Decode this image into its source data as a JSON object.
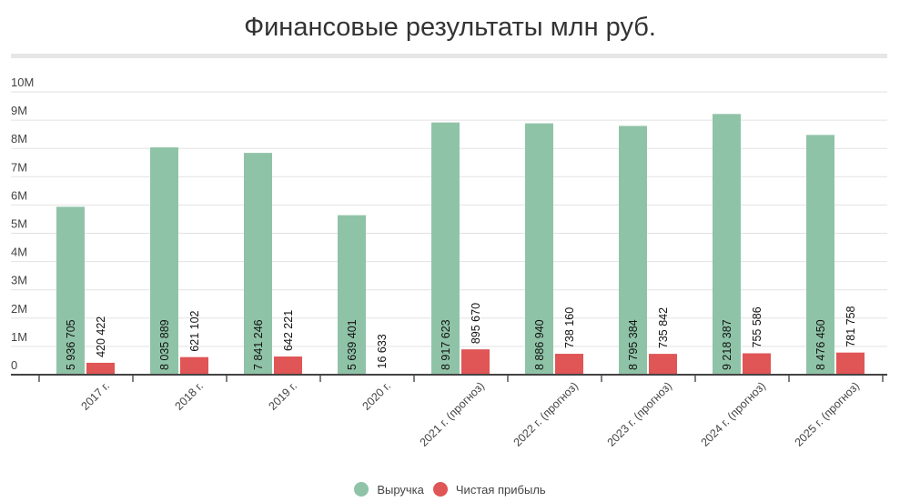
{
  "chart_data": {
    "type": "bar",
    "title": "Финансовые результаты млн руб.",
    "categories": [
      "2017 г.",
      "2018 г.",
      "2019 г.",
      "2020 г.",
      "2021 г. (прогноз)",
      "2022 г. (прогноз)",
      "2023 г. (прогноз)",
      "2024 г. (прогноз)",
      "2025 г. (прогноз)"
    ],
    "series": [
      {
        "name": "Выручка",
        "color": "#8fc3a7",
        "values": [
          5936705,
          8035889,
          7841246,
          5639401,
          8917623,
          8886940,
          8795384,
          9218387,
          8476450
        ],
        "labels": [
          "5 936 705",
          "8 035 889",
          "7 841 246",
          "5 639 401",
          "8 917 623",
          "8 886 940",
          "8 795 384",
          "9 218 387",
          "8 476 450"
        ]
      },
      {
        "name": "Чистая прибыль",
        "color": "#e05555",
        "values": [
          420422,
          621102,
          642221,
          16633,
          895670,
          738160,
          735842,
          755586,
          781758
        ],
        "labels": [
          "420 422",
          "621 102",
          "642 221",
          "16 633",
          "895 670",
          "738 160",
          "735 842",
          "755 586",
          "781 758"
        ]
      }
    ],
    "yticks": [
      "0",
      "1M",
      "2M",
      "3M",
      "4M",
      "5M",
      "6M",
      "7M",
      "8M",
      "9M",
      "10M"
    ],
    "ylim": [
      0,
      10000000
    ],
    "grid": true,
    "legend": "bottom"
  }
}
